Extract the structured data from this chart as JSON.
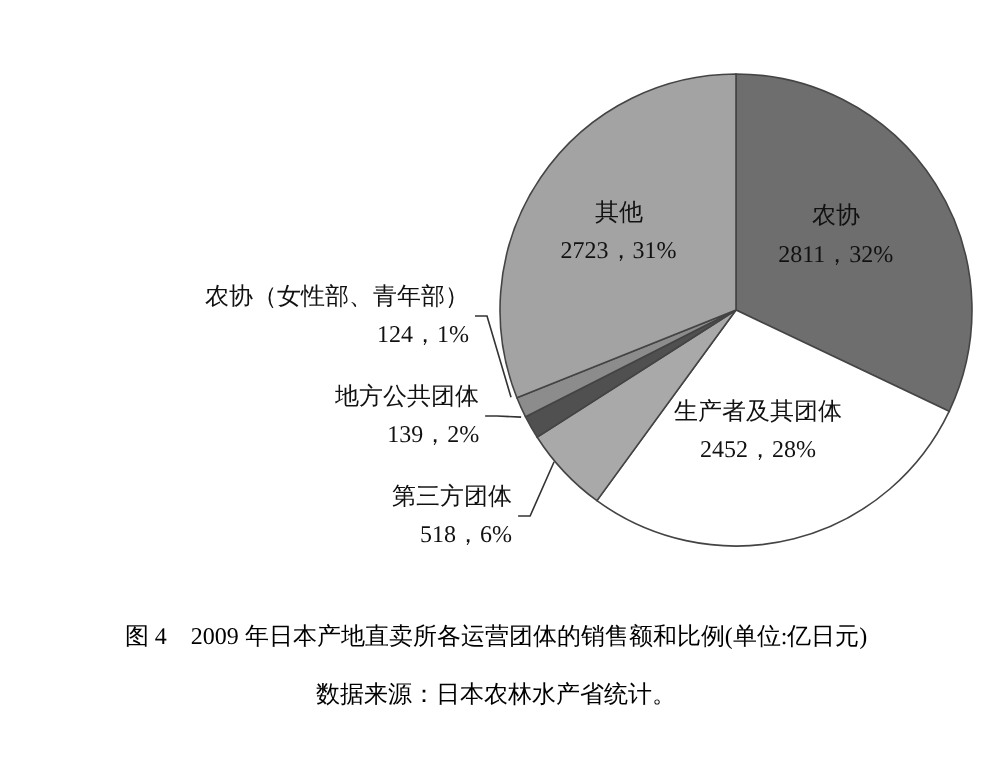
{
  "chart_data": {
    "type": "pie",
    "title": "图 4　2009 年日本产地直卖所各运营团体的销售额和比例(单位:亿日元)",
    "annotations": [
      "数据来源：日本农林水产省统计。"
    ],
    "categories": [
      "农协",
      "生产者及其团体",
      "第三方团体",
      "地方公共团体",
      "农协（女性部、青年部）",
      "其他"
    ],
    "values": [
      2811,
      2452,
      518,
      139,
      124,
      2723
    ],
    "value_labels": [
      "2811，32%",
      "2452，28%",
      "518，6%",
      "139，2%",
      "124，1%",
      "2723，31%"
    ],
    "colors": [
      "#6e6e6e",
      "#ffffff",
      "#a9a9a9",
      "#505050",
      "#8c8c8c",
      "#a3a3a3"
    ],
    "legend": false
  }
}
